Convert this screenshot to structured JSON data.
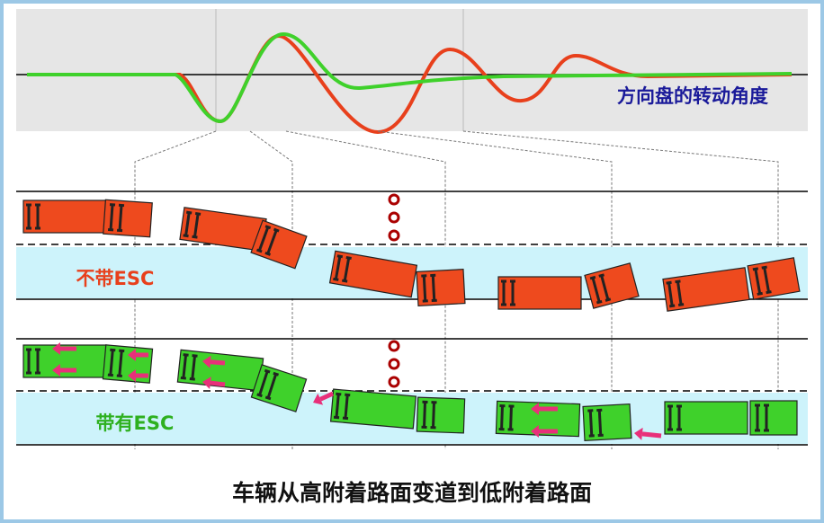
{
  "chart_label": "方向盘的转动角度",
  "scenarios": [
    {
      "label": "不带ESC"
    },
    {
      "label": "带有ESC"
    }
  ],
  "caption": "车辆从高附着路面变道到低附着路面"
}
